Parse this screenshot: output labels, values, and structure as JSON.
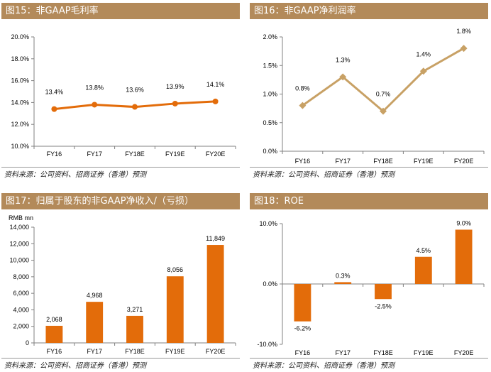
{
  "colors": {
    "orange": "#e36c0a",
    "tan": "#c8a165",
    "header_bg": "#b38a5a"
  },
  "source_note": "资料来源：公司资料、招商证券（香港）预测",
  "chart_data": [
    {
      "id": "c15",
      "type": "line",
      "title": "图15：非GAAP毛利率",
      "categories": [
        "FY16",
        "FY17",
        "FY18E",
        "FY19E",
        "FY20E"
      ],
      "values": [
        13.4,
        13.8,
        13.6,
        13.9,
        14.1
      ],
      "labels": [
        "13.4%",
        "13.8%",
        "13.6%",
        "13.9%",
        "14.1%"
      ],
      "yticks": [
        10,
        12,
        14,
        16,
        18,
        20
      ],
      "ytick_labels": [
        "10.0%",
        "12.0%",
        "14.0%",
        "16.0%",
        "18.0%",
        "20.0%"
      ],
      "ylim": [
        10,
        20
      ],
      "unit_label": "",
      "color": "#e36c0a",
      "marker": "circle"
    },
    {
      "id": "c16",
      "type": "line",
      "title": "图16：非GAAP净利润率",
      "categories": [
        "FY16",
        "FY17",
        "FY18E",
        "FY19E",
        "FY20E"
      ],
      "values": [
        0.8,
        1.3,
        0.7,
        1.4,
        1.8
      ],
      "labels": [
        "0.8%",
        "1.3%",
        "0.7%",
        "1.4%",
        "1.8%"
      ],
      "yticks": [
        0,
        0.5,
        1.0,
        1.5,
        2.0
      ],
      "ytick_labels": [
        "0.0%",
        "0.5%",
        "1.0%",
        "1.5%",
        "2.0%"
      ],
      "ylim": [
        0,
        2
      ],
      "unit_label": "",
      "color": "#c8a165",
      "marker": "diamond"
    },
    {
      "id": "c17",
      "type": "bar",
      "title": "图17：归属于股东的非GAAP净收入/（亏损）",
      "categories": [
        "FY16",
        "FY17",
        "FY18E",
        "FY19E",
        "FY20E"
      ],
      "values": [
        2068,
        4968,
        3271,
        8056,
        11849
      ],
      "labels": [
        "2,068",
        "4,968",
        "3,271",
        "8,056",
        "11,849"
      ],
      "yticks": [
        0,
        2000,
        4000,
        6000,
        8000,
        10000,
        12000,
        14000
      ],
      "ytick_labels": [
        "0",
        "2,000",
        "4,000",
        "6,000",
        "8,000",
        "10,000",
        "12,000",
        "14,000"
      ],
      "ylim": [
        0,
        14000
      ],
      "unit_label": "RMB mn",
      "color": "#e36c0a"
    },
    {
      "id": "c18",
      "type": "bar",
      "title": "图18：ROE",
      "categories": [
        "FY16",
        "FY17",
        "FY18E",
        "FY19E",
        "FY20E"
      ],
      "values": [
        -6.2,
        0.3,
        -2.5,
        4.5,
        9.0
      ],
      "labels": [
        "-6.2%",
        "0.3%",
        "-2.5%",
        "4.5%",
        "9.0%"
      ],
      "yticks": [
        -10,
        0,
        10
      ],
      "ytick_labels": [
        "-10.0%",
        "0.0%",
        "10.0%"
      ],
      "ylim": [
        -10,
        10
      ],
      "unit_label": "",
      "color": "#e36c0a"
    }
  ]
}
